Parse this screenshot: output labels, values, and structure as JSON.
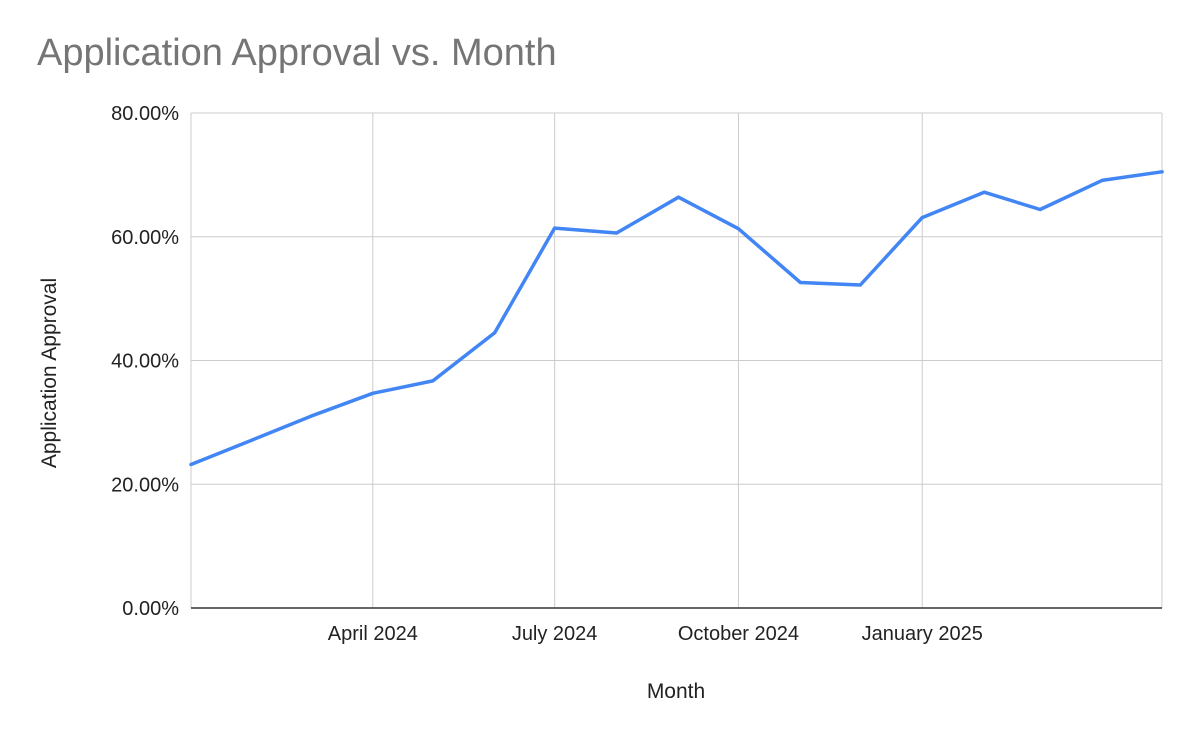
{
  "chart_data": {
    "type": "line",
    "title": "Application Approval vs. Month",
    "xlabel": "Month",
    "ylabel": "Application Approval",
    "ylim": [
      0,
      0.8
    ],
    "y_ticks": [
      0,
      0.2,
      0.4,
      0.6,
      0.8
    ],
    "y_tick_labels": [
      "0.00%",
      "20.00%",
      "40.00%",
      "60.00%",
      "80.00%"
    ],
    "x_ticks": [
      "2024-04-01",
      "2024-07-01",
      "2024-10-01",
      "2025-01-01"
    ],
    "x_tick_labels": [
      "April 2024",
      "July 2024",
      "October 2024",
      "January 2025"
    ],
    "xlim": [
      "2024-01-01",
      "2025-05-01"
    ],
    "grid": true,
    "line_color": "#4285f4",
    "series": [
      {
        "x": [
          "2024-01-01",
          "2024-02-01",
          "2024-03-01",
          "2024-04-01",
          "2024-05-01",
          "2024-06-01",
          "2024-07-01",
          "2024-08-01",
          "2024-09-01",
          "2024-10-01",
          "2024-11-01",
          "2024-12-01",
          "2025-01-01",
          "2025-02-01",
          "2025-03-01",
          "2025-04-01",
          "2025-05-01"
        ],
        "values": [
          0.232,
          0.272,
          0.31,
          0.347,
          0.367,
          0.445,
          0.614,
          0.606,
          0.664,
          0.613,
          0.526,
          0.522,
          0.631,
          0.672,
          0.644,
          0.691,
          0.705
        ]
      }
    ]
  }
}
